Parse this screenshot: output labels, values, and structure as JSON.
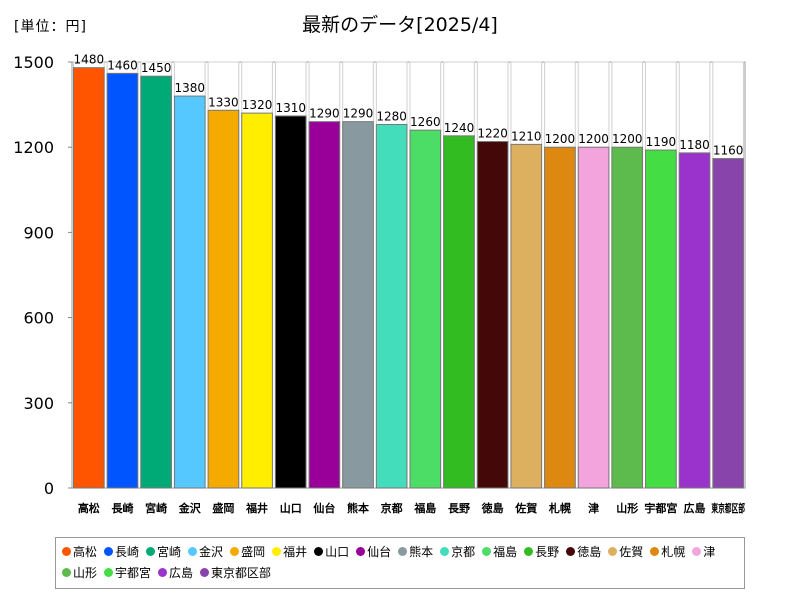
{
  "unit_label": "[単位：円]",
  "chart_data": {
    "type": "bar",
    "title": "最新のデータ[2025/4]",
    "categories": [
      "高松",
      "長崎",
      "宮崎",
      "金沢",
      "盛岡",
      "福井",
      "山口",
      "仙台",
      "熊本",
      "京都",
      "福島",
      "長野",
      "徳島",
      "佐賀",
      "札幌",
      "津",
      "山形",
      "宇都宮",
      "広島",
      "東京都区部"
    ],
    "values": [
      1480,
      1460,
      1450,
      1380,
      1330,
      1320,
      1310,
      1290,
      1290,
      1280,
      1260,
      1240,
      1220,
      1210,
      1200,
      1200,
      1200,
      1190,
      1180,
      1160
    ],
    "colors": [
      "#ff5500",
      "#0055ff",
      "#00aa77",
      "#55c8ff",
      "#f5aa00",
      "#ffee00",
      "#000000",
      "#990099",
      "#8899a0",
      "#44ddbb",
      "#4cdd66",
      "#33bb22",
      "#440808",
      "#ddb060",
      "#dd8811",
      "#f4a4dd",
      "#5cbb4c",
      "#44dd44",
      "#9933cc",
      "#8844aa"
    ],
    "ylim": [
      0,
      1500
    ],
    "yticks": [
      0,
      300,
      600,
      900,
      1200,
      1500
    ],
    "xlabel": "",
    "ylabel": ""
  }
}
